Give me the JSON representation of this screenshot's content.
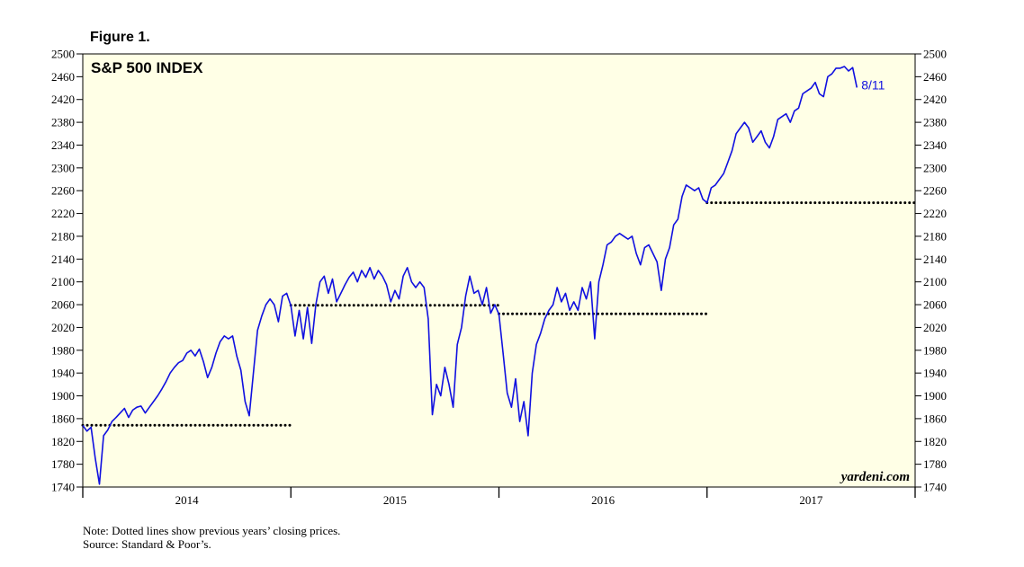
{
  "figure_label": "Figure 1.",
  "notes": {
    "line1": "Note: Dotted lines show previous years’ closing prices.",
    "line2": "Source: Standard & Poor’s."
  },
  "chart_data": {
    "type": "line",
    "title": "S&P 500 INDEX",
    "watermark": "yardeni.com",
    "end_label": "8/11",
    "xlabel": "",
    "ylabel": "",
    "ylim": [
      1740,
      2500
    ],
    "yticks": [
      1740,
      1780,
      1820,
      1860,
      1900,
      1940,
      1980,
      2020,
      2060,
      2100,
      2140,
      2180,
      2220,
      2260,
      2300,
      2340,
      2380,
      2420,
      2460,
      2500
    ],
    "x_unit": "year fraction",
    "xlim": [
      2014.0,
      2018.0
    ],
    "year_labels": [
      "2014",
      "2015",
      "2016",
      "2017"
    ],
    "grid": false,
    "colors": {
      "line": "#1010e0",
      "plot_bg": "#ffffe6",
      "dotted": "#000000"
    },
    "reference_lines": [
      {
        "value": 1848.36,
        "x_start": 2014.0,
        "x_end": 2015.0
      },
      {
        "value": 2058.9,
        "x_start": 2015.0,
        "x_end": 2016.0
      },
      {
        "value": 2043.94,
        "x_start": 2016.0,
        "x_end": 2017.0
      },
      {
        "value": 2238.83,
        "x_start": 2017.0,
        "x_end": 2018.0
      }
    ],
    "series": [
      {
        "values": [
          [
            2014.0,
            1848
          ],
          [
            2014.02,
            1838
          ],
          [
            2014.04,
            1845
          ],
          [
            2014.06,
            1790
          ],
          [
            2014.08,
            1745
          ],
          [
            2014.1,
            1830
          ],
          [
            2014.12,
            1840
          ],
          [
            2014.14,
            1855
          ],
          [
            2014.16,
            1862
          ],
          [
            2014.18,
            1870
          ],
          [
            2014.2,
            1878
          ],
          [
            2014.22,
            1862
          ],
          [
            2014.24,
            1875
          ],
          [
            2014.26,
            1880
          ],
          [
            2014.28,
            1882
          ],
          [
            2014.3,
            1870
          ],
          [
            2014.32,
            1880
          ],
          [
            2014.34,
            1890
          ],
          [
            2014.36,
            1900
          ],
          [
            2014.38,
            1912
          ],
          [
            2014.4,
            1925
          ],
          [
            2014.42,
            1940
          ],
          [
            2014.44,
            1950
          ],
          [
            2014.46,
            1958
          ],
          [
            2014.48,
            1962
          ],
          [
            2014.5,
            1975
          ],
          [
            2014.52,
            1980
          ],
          [
            2014.54,
            1970
          ],
          [
            2014.56,
            1982
          ],
          [
            2014.58,
            1960
          ],
          [
            2014.6,
            1932
          ],
          [
            2014.62,
            1950
          ],
          [
            2014.64,
            1975
          ],
          [
            2014.66,
            1995
          ],
          [
            2014.68,
            2005
          ],
          [
            2014.7,
            2000
          ],
          [
            2014.72,
            2005
          ],
          [
            2014.74,
            1970
          ],
          [
            2014.76,
            1945
          ],
          [
            2014.78,
            1890
          ],
          [
            2014.8,
            1865
          ],
          [
            2014.82,
            1940
          ],
          [
            2014.84,
            2015
          ],
          [
            2014.86,
            2040
          ],
          [
            2014.88,
            2060
          ],
          [
            2014.9,
            2070
          ],
          [
            2014.92,
            2060
          ],
          [
            2014.94,
            2030
          ],
          [
            2014.96,
            2075
          ],
          [
            2014.98,
            2080
          ],
          [
            2015.0,
            2058
          ],
          [
            2015.02,
            2005
          ],
          [
            2015.04,
            2050
          ],
          [
            2015.06,
            2000
          ],
          [
            2015.08,
            2055
          ],
          [
            2015.1,
            1992
          ],
          [
            2015.12,
            2060
          ],
          [
            2015.14,
            2100
          ],
          [
            2015.16,
            2110
          ],
          [
            2015.18,
            2080
          ],
          [
            2015.2,
            2105
          ],
          [
            2015.22,
            2065
          ],
          [
            2015.24,
            2080
          ],
          [
            2015.26,
            2095
          ],
          [
            2015.28,
            2108
          ],
          [
            2015.3,
            2117
          ],
          [
            2015.32,
            2100
          ],
          [
            2015.34,
            2120
          ],
          [
            2015.36,
            2108
          ],
          [
            2015.38,
            2125
          ],
          [
            2015.4,
            2105
          ],
          [
            2015.42,
            2120
          ],
          [
            2015.44,
            2110
          ],
          [
            2015.46,
            2095
          ],
          [
            2015.48,
            2065
          ],
          [
            2015.5,
            2085
          ],
          [
            2015.52,
            2070
          ],
          [
            2015.54,
            2110
          ],
          [
            2015.56,
            2125
          ],
          [
            2015.58,
            2100
          ],
          [
            2015.6,
            2090
          ],
          [
            2015.62,
            2100
          ],
          [
            2015.64,
            2090
          ],
          [
            2015.66,
            2035
          ],
          [
            2015.68,
            1867
          ],
          [
            2015.7,
            1920
          ],
          [
            2015.72,
            1900
          ],
          [
            2015.74,
            1950
          ],
          [
            2015.76,
            1920
          ],
          [
            2015.78,
            1880
          ],
          [
            2015.8,
            1990
          ],
          [
            2015.82,
            2020
          ],
          [
            2015.84,
            2075
          ],
          [
            2015.86,
            2110
          ],
          [
            2015.88,
            2080
          ],
          [
            2015.9,
            2085
          ],
          [
            2015.92,
            2060
          ],
          [
            2015.94,
            2090
          ],
          [
            2015.96,
            2045
          ],
          [
            2015.98,
            2060
          ],
          [
            2016.0,
            2043
          ],
          [
            2016.02,
            1975
          ],
          [
            2016.04,
            1905
          ],
          [
            2016.06,
            1880
          ],
          [
            2016.08,
            1930
          ],
          [
            2016.1,
            1855
          ],
          [
            2016.12,
            1890
          ],
          [
            2016.14,
            1830
          ],
          [
            2016.16,
            1940
          ],
          [
            2016.18,
            1990
          ],
          [
            2016.2,
            2010
          ],
          [
            2016.22,
            2035
          ],
          [
            2016.24,
            2050
          ],
          [
            2016.26,
            2060
          ],
          [
            2016.28,
            2090
          ],
          [
            2016.3,
            2065
          ],
          [
            2016.32,
            2080
          ],
          [
            2016.34,
            2050
          ],
          [
            2016.36,
            2065
          ],
          [
            2016.38,
            2050
          ],
          [
            2016.4,
            2090
          ],
          [
            2016.42,
            2070
          ],
          [
            2016.44,
            2100
          ],
          [
            2016.46,
            2000
          ],
          [
            2016.48,
            2100
          ],
          [
            2016.5,
            2130
          ],
          [
            2016.52,
            2165
          ],
          [
            2016.54,
            2170
          ],
          [
            2016.56,
            2180
          ],
          [
            2016.58,
            2185
          ],
          [
            2016.6,
            2180
          ],
          [
            2016.62,
            2175
          ],
          [
            2016.64,
            2180
          ],
          [
            2016.66,
            2150
          ],
          [
            2016.68,
            2130
          ],
          [
            2016.7,
            2160
          ],
          [
            2016.72,
            2165
          ],
          [
            2016.74,
            2150
          ],
          [
            2016.76,
            2135
          ],
          [
            2016.78,
            2085
          ],
          [
            2016.8,
            2140
          ],
          [
            2016.82,
            2160
          ],
          [
            2016.84,
            2200
          ],
          [
            2016.86,
            2210
          ],
          [
            2016.88,
            2250
          ],
          [
            2016.9,
            2270
          ],
          [
            2016.92,
            2265
          ],
          [
            2016.94,
            2260
          ],
          [
            2016.96,
            2265
          ],
          [
            2016.98,
            2245
          ],
          [
            2017.0,
            2239
          ],
          [
            2017.02,
            2265
          ],
          [
            2017.04,
            2270
          ],
          [
            2017.06,
            2280
          ],
          [
            2017.08,
            2290
          ],
          [
            2017.1,
            2310
          ],
          [
            2017.12,
            2330
          ],
          [
            2017.14,
            2360
          ],
          [
            2017.16,
            2370
          ],
          [
            2017.18,
            2380
          ],
          [
            2017.2,
            2370
          ],
          [
            2017.22,
            2345
          ],
          [
            2017.24,
            2355
          ],
          [
            2017.26,
            2365
          ],
          [
            2017.28,
            2345
          ],
          [
            2017.3,
            2335
          ],
          [
            2017.32,
            2355
          ],
          [
            2017.34,
            2385
          ],
          [
            2017.36,
            2390
          ],
          [
            2017.38,
            2395
          ],
          [
            2017.4,
            2380
          ],
          [
            2017.42,
            2400
          ],
          [
            2017.44,
            2405
          ],
          [
            2017.46,
            2430
          ],
          [
            2017.48,
            2435
          ],
          [
            2017.5,
            2440
          ],
          [
            2017.52,
            2450
          ],
          [
            2017.54,
            2430
          ],
          [
            2017.56,
            2425
          ],
          [
            2017.58,
            2460
          ],
          [
            2017.6,
            2465
          ],
          [
            2017.62,
            2475
          ],
          [
            2017.64,
            2475
          ],
          [
            2017.66,
            2478
          ],
          [
            2017.68,
            2470
          ],
          [
            2017.7,
            2476
          ],
          [
            2017.72,
            2441
          ]
        ]
      }
    ]
  }
}
